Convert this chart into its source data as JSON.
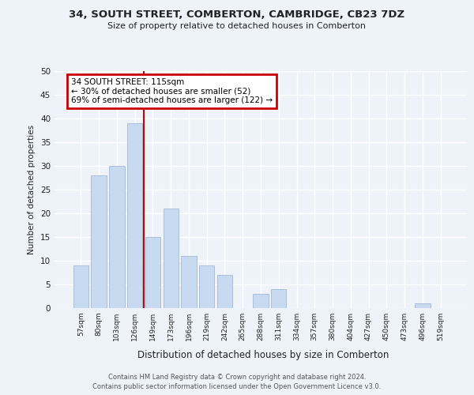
{
  "title": "34, SOUTH STREET, COMBERTON, CAMBRIDGE, CB23 7DZ",
  "subtitle": "Size of property relative to detached houses in Comberton",
  "bar_labels": [
    "57sqm",
    "80sqm",
    "103sqm",
    "126sqm",
    "149sqm",
    "173sqm",
    "196sqm",
    "219sqm",
    "242sqm",
    "265sqm",
    "288sqm",
    "311sqm",
    "334sqm",
    "357sqm",
    "380sqm",
    "404sqm",
    "427sqm",
    "450sqm",
    "473sqm",
    "496sqm",
    "519sqm"
  ],
  "bar_values": [
    9,
    28,
    30,
    39,
    15,
    21,
    11,
    9,
    7,
    0,
    3,
    4,
    0,
    0,
    0,
    0,
    0,
    0,
    0,
    1,
    0
  ],
  "bar_color": "#c8daf0",
  "bar_edge_color": "#aabfd8",
  "ylabel": "Number of detached properties",
  "xlabel": "Distribution of detached houses by size in Comberton",
  "ylim": [
    0,
    50
  ],
  "yticks": [
    0,
    5,
    10,
    15,
    20,
    25,
    30,
    35,
    40,
    45,
    50
  ],
  "vline_x": 3.5,
  "vline_color": "#cc0000",
  "annotation_title": "34 SOUTH STREET: 115sqm",
  "annotation_line1": "← 30% of detached houses are smaller (52)",
  "annotation_line2": "69% of semi-detached houses are larger (122) →",
  "annotation_box_color": "#cc0000",
  "footer_line1": "Contains HM Land Registry data © Crown copyright and database right 2024.",
  "footer_line2": "Contains public sector information licensed under the Open Government Licence v3.0.",
  "background_color": "#eef2f9",
  "plot_background": "#eef2f9",
  "grid_color": "#ffffff"
}
